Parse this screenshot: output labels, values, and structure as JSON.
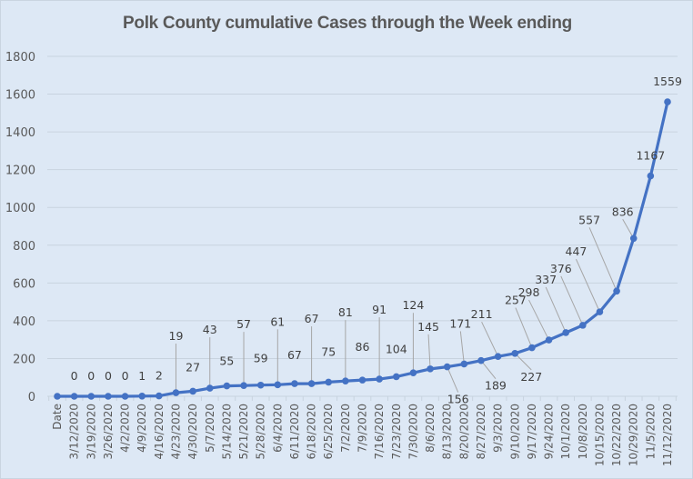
{
  "chart_data": {
    "type": "line",
    "title": "Polk County cumulative Cases through the Week ending",
    "xlabel": "",
    "ylabel": "",
    "ylim": [
      0,
      1800
    ],
    "yticks": [
      0,
      200,
      400,
      600,
      800,
      1000,
      1200,
      1400,
      1600,
      1800
    ],
    "grid": true,
    "legend": "none",
    "categories": [
      "Date",
      "3/12/2020",
      "3/19/2020",
      "3/26/2020",
      "4/2/2020",
      "4/9/2020",
      "4/16/2020",
      "4/23/2020",
      "4/30/2020",
      "5/7/2020",
      "5/14/2020",
      "5/21/2020",
      "5/28/2020",
      "6/4/2020",
      "6/11/2020",
      "6/18/2020",
      "6/25/2020",
      "7/2/2020",
      "7/9/2020",
      "7/16/2020",
      "7/23/2020",
      "7/30/2020",
      "8/6/2020",
      "8/13/2020",
      "8/20/2020",
      "8/27/2020",
      "9/3/2020",
      "9/10/2020",
      "9/17/2020",
      "9/24/2020",
      "10/1/2020",
      "10/8/2020",
      "10/15/2020",
      "10/22/2020",
      "10/29/2020",
      "11/5/2020",
      "11/12/2020"
    ],
    "series": [
      {
        "name": "Cumulative Cases",
        "color": "#4472c4",
        "values": [
          0,
          0,
          0,
          0,
          0,
          1,
          2,
          19,
          27,
          43,
          55,
          57,
          59,
          61,
          67,
          67,
          75,
          81,
          86,
          91,
          104,
          124,
          145,
          156,
          171,
          189,
          211,
          227,
          257,
          298,
          337,
          376,
          447,
          557,
          836,
          1167,
          1559
        ],
        "data_labels": [
          null,
          "0",
          "0",
          "0",
          "0",
          "1",
          "2",
          "19",
          "27",
          "43",
          "55",
          "57",
          "59",
          "61",
          "67",
          "67",
          "75",
          "81",
          "86",
          "91",
          "104",
          "124",
          "145",
          "156",
          "171",
          "189",
          "211",
          "227",
          "257",
          "298",
          "337",
          "376",
          "447",
          "557",
          "836",
          "1167",
          "1559"
        ]
      }
    ]
  },
  "colors": {
    "background": "#dde8f5",
    "gridline": "#c8d3df",
    "series": "#4472c4",
    "text": "#595959"
  }
}
